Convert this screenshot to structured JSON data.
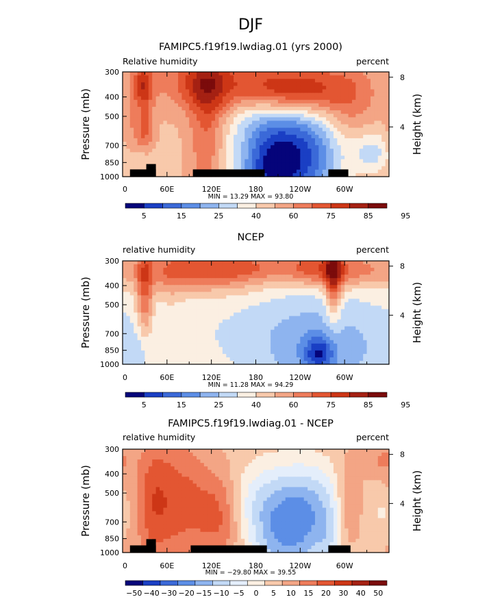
{
  "figure_title": "DJF",
  "colors": {
    "cb_full": [
      "#05047a",
      "#1a3fc4",
      "#3b69d8",
      "#5c8ee6",
      "#8eb4ef",
      "#c2d9f6",
      "#fbefe2",
      "#f8c9ab",
      "#f3a585",
      "#ee7c5b",
      "#e35632",
      "#cd3616",
      "#a52113",
      "#7b0b0b"
    ],
    "cb_diff": [
      "#05047a",
      "#1a3fc4",
      "#3b69d8",
      "#5c8ee6",
      "#8eb4ef",
      "#c2d9f6",
      "#e4eefb",
      "#fbefe2",
      "#f8c9ab",
      "#f3a585",
      "#ee7c5b",
      "#e35632",
      "#cd3616",
      "#a52113",
      "#7b0b0b"
    ]
  },
  "chart_data": [
    {
      "type": "heatmap",
      "title": "FAMIPC5.f19f19.lwdiag.01 (yrs 2000)",
      "left_label": "Relative humidity",
      "right_label": "percent",
      "ylabel": "Pressure (mb)",
      "y2label": "Height (km)",
      "xticks": [
        "0",
        "60E",
        "120E",
        "180",
        "120W",
        "60W"
      ],
      "yticks": [
        "300",
        "400",
        "500",
        "700",
        "850",
        "1000"
      ],
      "y2ticks": [
        "8",
        "4"
      ],
      "ylim": [
        1000,
        300
      ],
      "xlim_deg_east": [
        0,
        360
      ],
      "stats": "MIN =   13.29   MAX =   93.80",
      "colorbar_labels": [
        "5",
        "15",
        "25",
        "40",
        "60",
        "75",
        "85",
        "95"
      ],
      "colorbar_type": "full",
      "has_topography": true
    },
    {
      "type": "heatmap",
      "title": "NCEP",
      "left_label": "relative humidity",
      "right_label": "percent",
      "ylabel": "Pressure (mb)",
      "y2label": "Height (km)",
      "xticks": [
        "0",
        "60E",
        "120E",
        "180",
        "120W",
        "60W"
      ],
      "yticks": [
        "300",
        "400",
        "500",
        "700",
        "850",
        "1000"
      ],
      "y2ticks": [
        "8",
        "4"
      ],
      "ylim": [
        1000,
        300
      ],
      "xlim_deg_east": [
        0,
        360
      ],
      "stats": "MIN =   11.28   MAX =   94.29",
      "colorbar_labels": [
        "5",
        "15",
        "25",
        "40",
        "60",
        "75",
        "85",
        "95"
      ],
      "colorbar_type": "full",
      "has_topography": false
    },
    {
      "type": "heatmap",
      "title": "FAMIPC5.f19f19.lwdiag.01 - NCEP",
      "left_label": "relative humidity",
      "right_label": "percent",
      "ylabel": "Pressure (mb)",
      "y2label": "Height (km)",
      "xticks": [
        "0",
        "60E",
        "120E",
        "180",
        "120W",
        "60W"
      ],
      "yticks": [
        "300",
        "400",
        "500",
        "700",
        "850",
        "1000"
      ],
      "y2ticks": [
        "8",
        "4"
      ],
      "ylim": [
        1000,
        300
      ],
      "xlim_deg_east": [
        0,
        360
      ],
      "stats": "MIN = −29.80   MAX =   39.55",
      "colorbar_labels": [
        "−50",
        "−40",
        "−30",
        "−20",
        "−15",
        "−10",
        "−5",
        "0",
        "5",
        "10",
        "15",
        "20",
        "30",
        "40",
        "50"
      ],
      "colorbar_type": "diff",
      "has_topography": true
    }
  ]
}
